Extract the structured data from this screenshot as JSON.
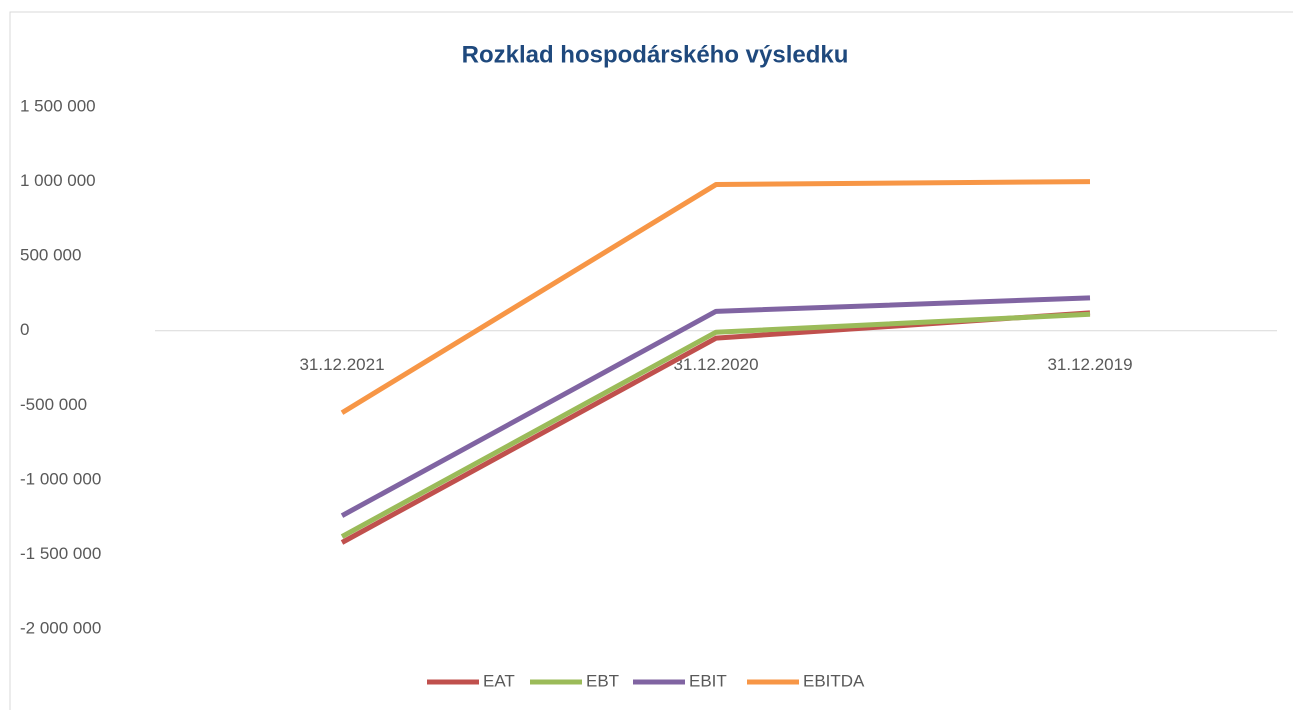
{
  "chart_data": {
    "type": "line",
    "title": "Rozklad hospodárského výsledku",
    "categories": [
      "31.12.2021",
      "31.12.2020",
      "31.12.2019"
    ],
    "series": [
      {
        "name": "EAT",
        "color": "#c0504d",
        "values": [
          -1420000,
          -50000,
          120000
        ]
      },
      {
        "name": "EBT",
        "color": "#9bbb59",
        "values": [
          -1380000,
          -10000,
          110000
        ]
      },
      {
        "name": "EBIT",
        "color": "#8064a2",
        "values": [
          -1240000,
          130000,
          220000
        ]
      },
      {
        "name": "EBITDA",
        "color": "#f79646",
        "values": [
          -550000,
          980000,
          1000000
        ]
      }
    ],
    "ylim": [
      -2000000,
      1500000
    ],
    "yticks": [
      {
        "value": -2000000,
        "label": "-2 000 000"
      },
      {
        "value": -1500000,
        "label": "-1 500 000"
      },
      {
        "value": -1000000,
        "label": "-1 000 000"
      },
      {
        "value": -500000,
        "label": "-500 000"
      },
      0,
      {
        "value": 500000,
        "label": "500 000"
      },
      {
        "value": 1000000,
        "label": "1 000 000"
      },
      {
        "value": 1500000,
        "label": "1 500 000"
      }
    ],
    "grid": false,
    "legend": "bottom"
  }
}
